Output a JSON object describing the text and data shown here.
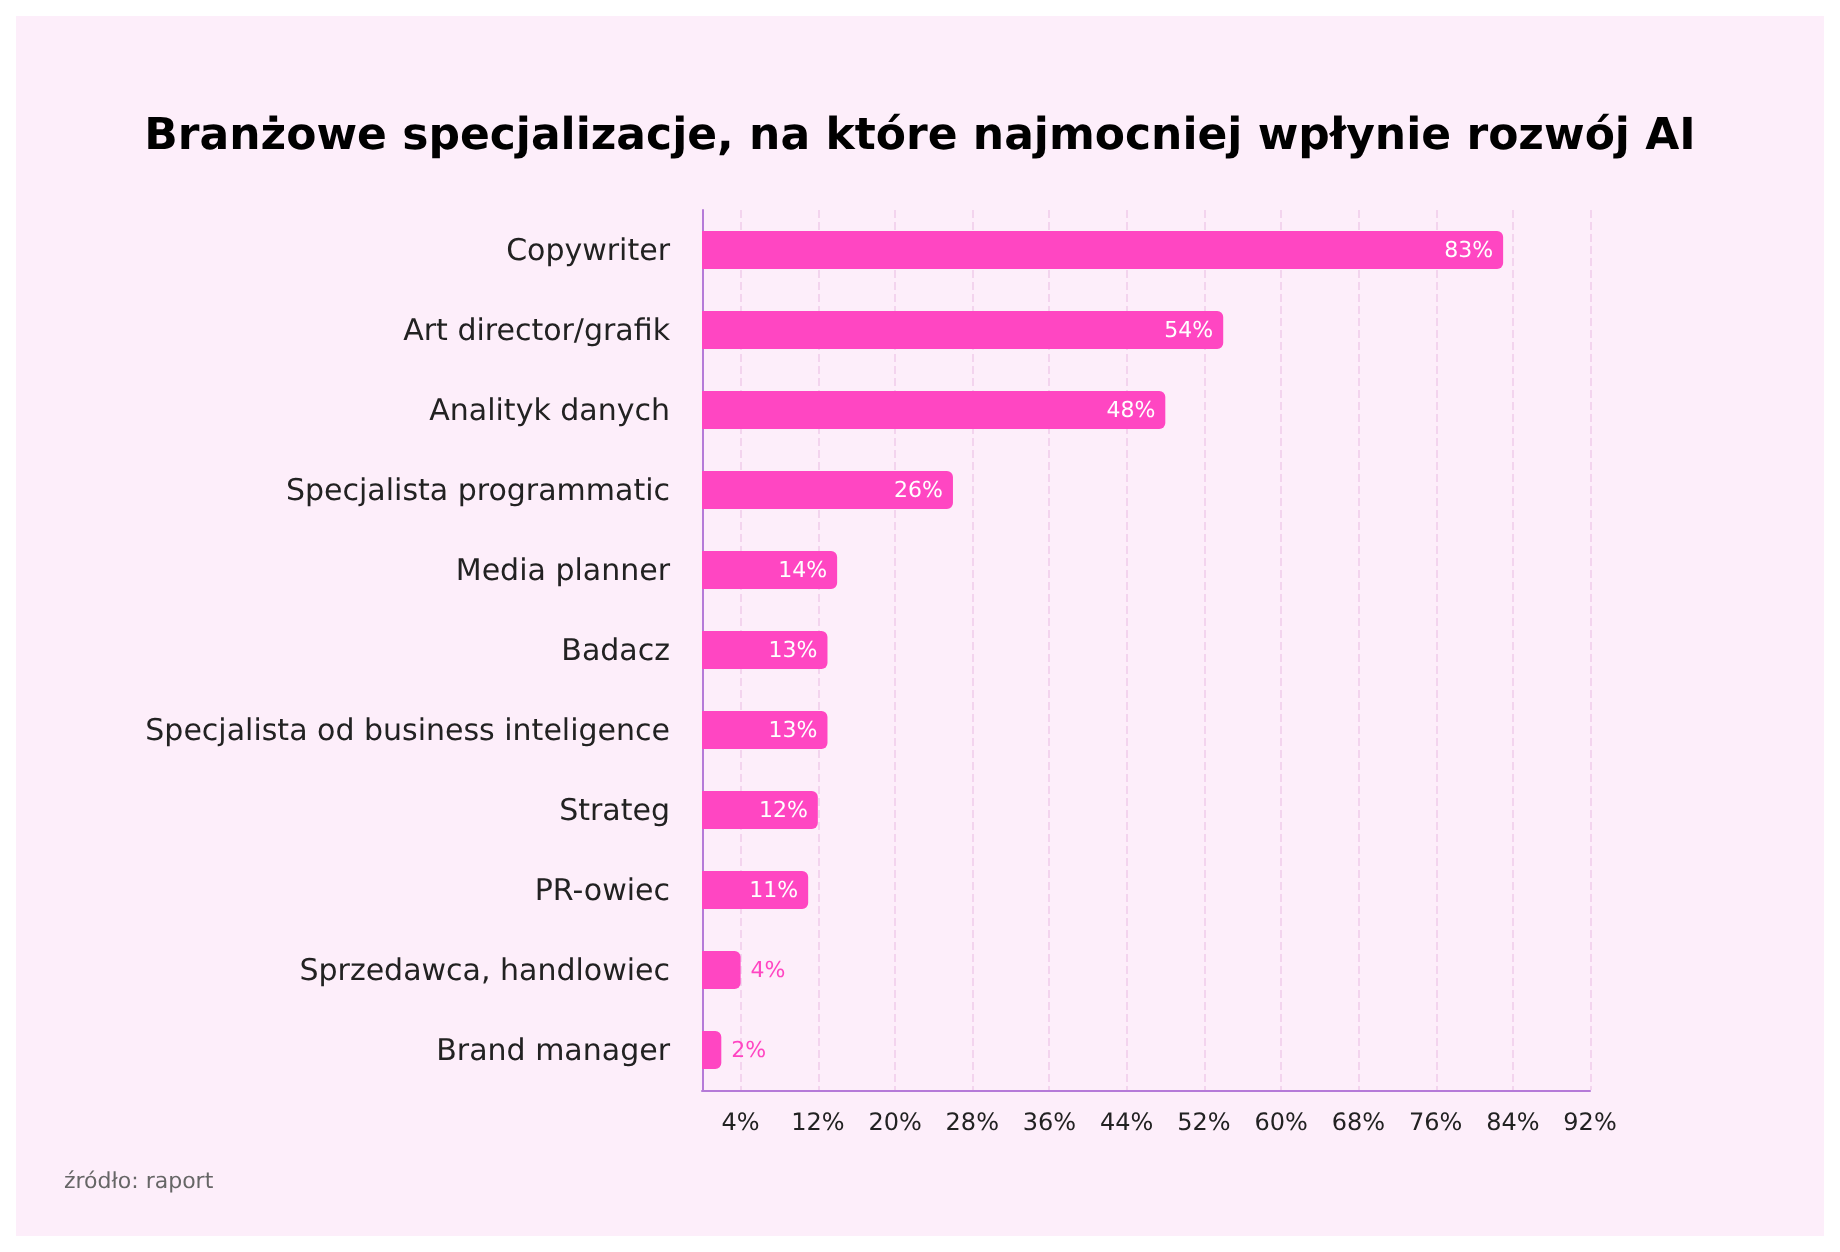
{
  "chart_data": {
    "type": "bar",
    "orientation": "horizontal",
    "title": "Branżowe specjalizacje, na które najmocniej wpłynie rozwój AI",
    "categories": [
      "Copywriter",
      "Art director/grafik",
      "Analityk danych",
      "Specjalista programmatic",
      "Media planner",
      "Badacz",
      "Specjalista od business inteligence",
      "Strateg",
      "PR-owiec",
      "Sprzedawca, handlowiec",
      "Brand manager"
    ],
    "values": [
      83,
      54,
      48,
      26,
      14,
      13,
      13,
      12,
      11,
      4,
      2
    ],
    "value_labels": [
      "83%",
      "54%",
      "48%",
      "26%",
      "14%",
      "13%",
      "13%",
      "12%",
      "11%",
      "4%",
      "2%"
    ],
    "color": "#ff46c2",
    "xlim": [
      0,
      92
    ],
    "xticks": [
      {
        "value": 4,
        "label": "4%"
      },
      {
        "value": 12,
        "label": "12%"
      },
      {
        "value": 20,
        "label": "20%"
      },
      {
        "value": 28,
        "label": "28%"
      },
      {
        "value": 36,
        "label": "36%"
      },
      {
        "value": 44,
        "label": "44%"
      },
      {
        "value": 52,
        "label": "52%"
      },
      {
        "value": 60,
        "label": "60%"
      },
      {
        "value": 68,
        "label": "68%"
      },
      {
        "value": 76,
        "label": "76%"
      },
      {
        "value": 84,
        "label": "84%"
      },
      {
        "value": 92,
        "label": "92%"
      }
    ],
    "grid": "x",
    "annotations": [
      "źródło: raport"
    ]
  }
}
